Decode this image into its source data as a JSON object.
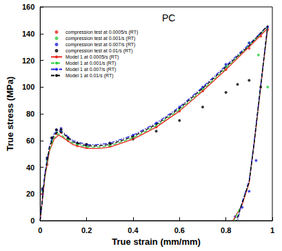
{
  "chart_data": {
    "type": "line",
    "title": "PC",
    "x_label": "True strain (mm/mm)",
    "y_label": "True stress (MPa)",
    "xlim": [
      0,
      1
    ],
    "xticks": [
      0,
      0.2,
      0.4,
      0.6,
      0.8,
      1
    ],
    "ylim": [
      0,
      160
    ],
    "yticks": [
      0,
      20,
      40,
      60,
      80,
      100,
      120,
      140,
      160
    ],
    "legend": "upper left",
    "grid": false,
    "series": [
      {
        "name": "compression test at 0.0005/s (RT)",
        "color": "#e8261c",
        "type": "scatter",
        "marker": "circle",
        "x": [
          0.01,
          0.03,
          0.05,
          0.07,
          0.09,
          0.12,
          0.16,
          0.2,
          0.3,
          0.4,
          0.5,
          0.6,
          0.7,
          0.8,
          0.9,
          0.95,
          0.98
        ],
        "values": [
          20,
          42,
          58,
          65,
          66,
          60,
          56,
          55,
          56,
          62,
          70,
          82,
          97,
          113,
          129,
          138,
          143
        ]
      },
      {
        "name": "compression test at 0.001/s (RT)",
        "color": "#2ecc40",
        "type": "scatter",
        "marker": "circle",
        "x": [
          0.01,
          0.03,
          0.05,
          0.07,
          0.09,
          0.12,
          0.16,
          0.2,
          0.3,
          0.4,
          0.5,
          0.6,
          0.7,
          0.8,
          0.9,
          0.94,
          0.98
        ],
        "values": [
          22,
          45,
          60,
          66,
          67,
          61,
          57,
          56,
          57,
          63,
          72,
          84,
          99,
          116,
          133,
          124,
          100
        ]
      },
      {
        "name": "compression test at 0.007/s (RT)",
        "color": "#2222dd",
        "type": "scatter",
        "marker": "circle",
        "x": [
          0.01,
          0.03,
          0.05,
          0.07,
          0.09,
          0.12,
          0.16,
          0.2,
          0.3,
          0.4,
          0.5,
          0.6,
          0.7,
          0.8,
          0.9,
          0.95,
          0.98,
          0.93,
          0.9,
          0.87,
          0.84
        ],
        "values": [
          23,
          46,
          62,
          68,
          69,
          62,
          58,
          57,
          58,
          64,
          73,
          85,
          100,
          117,
          133,
          140,
          145,
          45,
          22,
          10,
          3
        ]
      },
      {
        "name": "compression test at 0.01/s (RT)",
        "color": "#000000",
        "type": "scatter",
        "marker": "circle",
        "x": [
          0.01,
          0.03,
          0.05,
          0.07,
          0.09,
          0.12,
          0.16,
          0.2,
          0.3,
          0.4,
          0.5,
          0.6,
          0.7,
          0.8,
          0.85,
          0.9,
          0.95
        ],
        "values": [
          24,
          47,
          62,
          68,
          68,
          62,
          58,
          57,
          58,
          61,
          67,
          75,
          85,
          96,
          102,
          105,
          100
        ]
      },
      {
        "name": "Model 1 at 0.0005/s (RT)",
        "color": "#e8261c",
        "type": "line",
        "line_style": "solid",
        "x": [
          0,
          0.02,
          0.04,
          0.06,
          0.08,
          0.1,
          0.14,
          0.2,
          0.25,
          0.3,
          0.4,
          0.5,
          0.6,
          0.7,
          0.8,
          0.9,
          0.98,
          0.96,
          0.94,
          0.92,
          0.9,
          0.87,
          0.83
        ],
        "values": [
          0,
          32,
          52,
          61,
          64,
          62,
          57,
          54,
          54,
          55,
          61,
          70,
          82,
          97,
          113,
          130,
          144,
          115,
          85,
          55,
          28,
          12,
          0
        ]
      },
      {
        "name": "Model 1 at 0.001/s (RT)",
        "color": "#2ecc40",
        "type": "line",
        "line_style": "dashed",
        "x": [
          0,
          0.02,
          0.04,
          0.06,
          0.08,
          0.1,
          0.14,
          0.2,
          0.25,
          0.3,
          0.4,
          0.5,
          0.6,
          0.7,
          0.8,
          0.9,
          0.98,
          0.96,
          0.94,
          0.92,
          0.9,
          0.87,
          0.835
        ],
        "values": [
          0,
          33,
          53,
          62,
          65,
          63,
          58,
          55,
          55,
          56,
          62,
          71,
          83,
          98,
          114,
          131,
          145,
          116,
          86,
          56,
          29,
          13,
          0
        ]
      },
      {
        "name": "Model 1 at 0.007/s (RT)",
        "color": "#2222dd",
        "type": "line",
        "line_style": "dashdot",
        "x": [
          0,
          0.02,
          0.04,
          0.06,
          0.08,
          0.1,
          0.14,
          0.2,
          0.25,
          0.3,
          0.4,
          0.5,
          0.6,
          0.7,
          0.8,
          0.9,
          0.98,
          0.96,
          0.94,
          0.92,
          0.9,
          0.87,
          0.85
        ],
        "values": [
          0,
          35,
          56,
          65,
          68,
          66,
          60,
          57,
          57,
          58,
          64,
          73,
          85,
          100,
          116,
          132,
          146,
          117,
          87,
          57,
          30,
          14,
          0
        ]
      },
      {
        "name": "Model 1 at 0.01/s (RT)",
        "color": "#000000",
        "type": "line",
        "line_style": "dashed",
        "x": [
          0,
          0.02,
          0.04,
          0.06,
          0.08,
          0.1,
          0.14,
          0.2,
          0.25,
          0.3,
          0.4,
          0.5,
          0.6,
          0.7,
          0.8,
          0.9,
          0.98,
          0.96,
          0.94,
          0.92,
          0.9,
          0.87,
          0.845
        ],
        "values": [
          0,
          34,
          55,
          64,
          67,
          65,
          59,
          56,
          56,
          57,
          63,
          72,
          84,
          99,
          115,
          131,
          146,
          116,
          86,
          56,
          29,
          13,
          0
        ]
      }
    ]
  }
}
